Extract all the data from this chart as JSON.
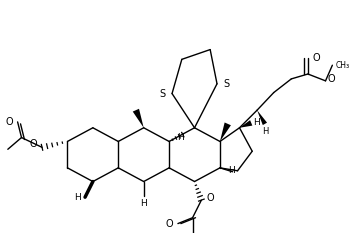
{
  "bg_color": "#ffffff",
  "line_color": "#000000",
  "lw": 1.0,
  "blw": 2.5,
  "fig_width": 3.5,
  "fig_height": 2.36,
  "dpi": 100,
  "xlim": [
    0,
    350
  ],
  "ylim": [
    0,
    236
  ]
}
